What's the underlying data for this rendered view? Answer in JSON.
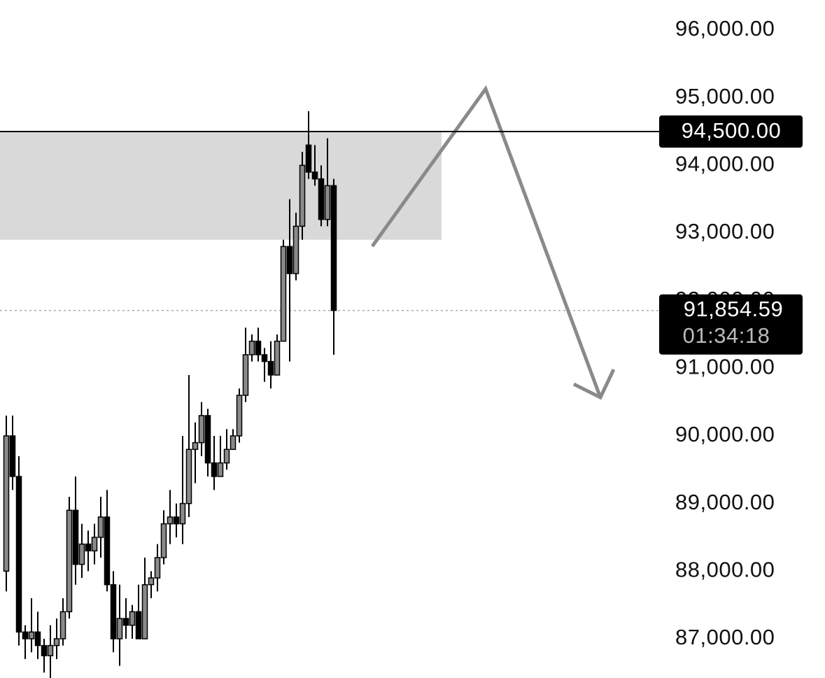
{
  "chart_data": {
    "type": "candlestick",
    "open": [
      88000,
      90000,
      89400,
      87100,
      87000,
      87100,
      86900,
      86750,
      86900,
      87000,
      87400,
      88900,
      88100,
      88400,
      88300,
      88500,
      88800,
      87800,
      87000,
      87300,
      87200,
      87400,
      87000,
      87800,
      87900,
      88200,
      88700,
      88800,
      88700,
      89000,
      89800,
      89900,
      90300,
      89600,
      89400,
      89600,
      89800,
      90000,
      90600,
      91200,
      91400,
      91200,
      91100,
      90900,
      91400,
      92800,
      92400,
      93100,
      94300,
      93900,
      93800,
      93200,
      93700
    ],
    "high": [
      90300,
      90300,
      89700,
      87200,
      87600,
      87400,
      87000,
      87200,
      87300,
      87600,
      89100,
      89400,
      88700,
      88600,
      88700,
      89100,
      89200,
      88000,
      87800,
      87600,
      87500,
      87800,
      88200,
      88000,
      88400,
      88900,
      89200,
      89000,
      90000,
      90900,
      90200,
      90500,
      90400,
      90000,
      90000,
      90100,
      90100,
      90700,
      91600,
      91500,
      91600,
      91300,
      91400,
      91500,
      92900,
      93500,
      93300,
      94200,
      94800,
      94300,
      94000,
      94400,
      93800
    ],
    "low": [
      87700,
      89200,
      86900,
      86700,
      86800,
      86700,
      86500,
      86300,
      86700,
      86900,
      87300,
      87800,
      87900,
      88000,
      88100,
      88200,
      87700,
      86800,
      86600,
      87000,
      87000,
      87000,
      87000,
      87600,
      87700,
      88100,
      88400,
      88500,
      88400,
      88800,
      89300,
      89700,
      89400,
      89200,
      89400,
      89500,
      89800,
      89900,
      90500,
      91100,
      91100,
      90800,
      90700,
      90900,
      91400,
      91100,
      92300,
      92900,
      93800,
      93700,
      93100,
      93100,
      91200
    ],
    "close": [
      90000,
      89400,
      87100,
      87000,
      87100,
      86900,
      86750,
      86900,
      87000,
      87400,
      88900,
      88100,
      88400,
      88300,
      88500,
      88800,
      87800,
      87000,
      87300,
      87200,
      87400,
      87000,
      87800,
      87900,
      88200,
      88700,
      88800,
      88700,
      89000,
      89800,
      89900,
      90300,
      89600,
      89400,
      89600,
      89800,
      90000,
      90600,
      91200,
      91400,
      91200,
      91100,
      90900,
      91400,
      92800,
      92400,
      93100,
      94000,
      93900,
      93800,
      93200,
      93700,
      91854.59
    ],
    "up_color": "#8a8a8a",
    "down_color": "#000000",
    "ylim": [
      86420,
      96445
    ],
    "yticks": [
      {
        "value": 87000,
        "label": "87,000.00"
      },
      {
        "value": 88000,
        "label": "88,000.00"
      },
      {
        "value": 89000,
        "label": "89,000.00"
      },
      {
        "value": 90000,
        "label": "90,000.00"
      },
      {
        "value": 91000,
        "label": "91,000.00"
      },
      {
        "value": 92000,
        "label": "92,000.00"
      },
      {
        "value": 93000,
        "label": "93,000.00"
      },
      {
        "value": 94000,
        "label": "94,000.00"
      },
      {
        "value": 95000,
        "label": "95,000.00"
      },
      {
        "value": 96000,
        "label": "96,000.00"
      }
    ],
    "zone": [
      92900,
      94500
    ],
    "level": {
      "value": 94500,
      "label": "94,500.00"
    },
    "last_price": {
      "value": 91854.59,
      "label": "91,854.59"
    },
    "countdown": "01:34:18"
  }
}
